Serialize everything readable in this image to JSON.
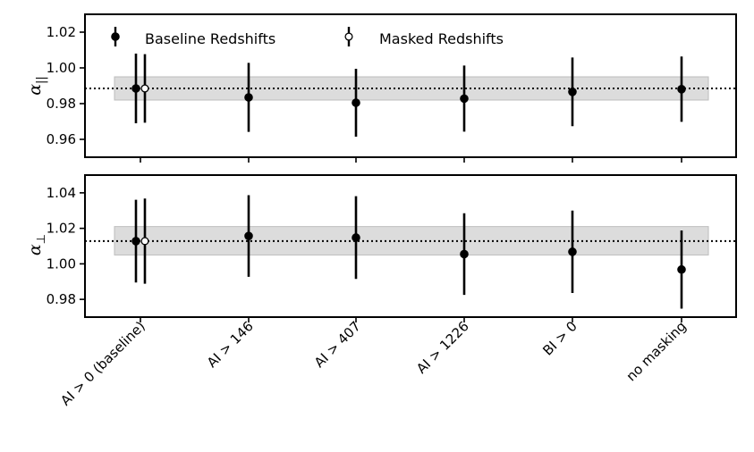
{
  "chart_data": {
    "type": "scatter",
    "categories": [
      "AI > 0 (baseline)",
      "AI > 146",
      "AI > 407",
      "AI > 1226",
      "BI > 0",
      "no masking"
    ],
    "legend": {
      "placement": "top",
      "entries": [
        "Baseline Redshifts",
        "Masked Redshifts"
      ]
    },
    "panels": [
      {
        "ylabel_symbol": "α",
        "ylabel_subscript": "||",
        "ylim": [
          0.95,
          1.03
        ],
        "yticks": [
          "0.96",
          "0.98",
          "1.00",
          "1.02"
        ],
        "ytick_values": [
          0.96,
          0.98,
          1.0,
          1.02
        ],
        "reference_line": 0.9885,
        "reference_band": [
          0.982,
          0.995
        ],
        "series": [
          {
            "name": "Baseline Redshifts",
            "marker": "filled",
            "values": [
              0.9885,
              0.9835,
              0.9805,
              0.9828,
              0.9866,
              0.9881
            ],
            "errors": [
              0.0195,
              0.0193,
              0.019,
              0.0185,
              0.0192,
              0.0183
            ]
          },
          {
            "name": "Masked Redshifts",
            "marker": "open",
            "category_index": 0,
            "value": 0.9885,
            "error": 0.0192
          }
        ]
      },
      {
        "ylabel_symbol": "α",
        "ylabel_subscript": "⊥",
        "ylim": [
          0.97,
          1.05
        ],
        "yticks": [
          "0.98",
          "1.00",
          "1.02",
          "1.04"
        ],
        "ytick_values": [
          0.98,
          1.0,
          1.02,
          1.04
        ],
        "reference_line": 1.0128,
        "reference_band": [
          1.005,
          1.021
        ],
        "series": [
          {
            "name": "Baseline Redshifts",
            "marker": "filled",
            "values": [
              1.0128,
              1.0157,
              1.0148,
              1.0055,
              1.0068,
              0.9968
            ],
            "errors": [
              0.0233,
              0.023,
              0.0233,
              0.023,
              0.0232,
              0.022
            ]
          },
          {
            "name": "Masked Redshifts",
            "marker": "open",
            "category_index": 0,
            "value": 1.0128,
            "error": 0.024
          }
        ]
      }
    ]
  }
}
